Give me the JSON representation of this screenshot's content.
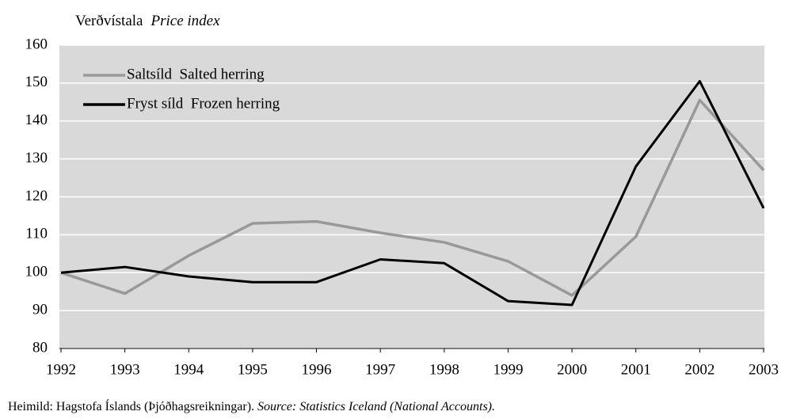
{
  "chart_data": {
    "type": "line",
    "ylabel": "Verðvístala",
    "ylabel_en": "Price index",
    "x": [
      1992,
      1993,
      1994,
      1995,
      1996,
      1997,
      1998,
      1999,
      2000,
      2001,
      2002,
      2003
    ],
    "xlim": [
      1992,
      2003
    ],
    "xticks": [
      1992,
      1993,
      1994,
      1995,
      1996,
      1997,
      1998,
      1999,
      2000,
      2001,
      2002,
      2003
    ],
    "ylim": [
      80,
      160
    ],
    "yticks": [
      80,
      90,
      100,
      110,
      120,
      130,
      140,
      150,
      160
    ],
    "grid": true,
    "legend": "top-left",
    "series": [
      {
        "name": "Saltsíld  Salted herring",
        "color": "#999999",
        "values": [
          100,
          94.5,
          104.5,
          113,
          113.5,
          110.5,
          108,
          103,
          94,
          109.5,
          145.5,
          127
        ]
      },
      {
        "name": "Fryst síld  Frozen herring",
        "color": "#000000",
        "values": [
          100,
          101.5,
          99,
          97.5,
          97.5,
          103.5,
          102.5,
          92.5,
          91.5,
          128,
          150.5,
          117
        ]
      }
    ],
    "source": "Heimild: Hagstofa Íslands (Þjóðhagsreikningar).",
    "source_en": "Source: Statistics Iceland (National Accounts)."
  }
}
